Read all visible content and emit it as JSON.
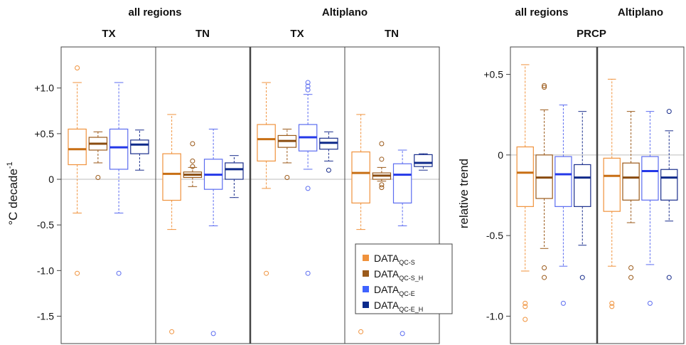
{
  "colors": {
    "orange": "#f0923c",
    "brown": "#9b5a1a",
    "blue": "#5b6cf0",
    "navy": "#1a2e8c",
    "frame": "#444444",
    "zero_line": "#bdbdbd"
  },
  "legend": {
    "items": [
      {
        "base": "DATA",
        "sub": "QC-S",
        "color": "#f0923c"
      },
      {
        "base": "DATA",
        "sub": "QC-S_H",
        "color": "#9b5a1a"
      },
      {
        "base": "DATA",
        "sub": "QC-E",
        "color": "#3f63ff"
      },
      {
        "base": "DATA",
        "sub": "QC-E_H",
        "color": "#0a2a8c"
      }
    ]
  },
  "chart_data": [
    {
      "type": "boxplot",
      "title_groups": [
        "all regions",
        "Altiplano"
      ],
      "panels": [
        "TX",
        "TN",
        "TX",
        "TN"
      ],
      "ylabel_base": "°C decade",
      "ylabel_sup": "-1",
      "yticks": [
        1.0,
        0.5,
        0,
        -0.5,
        -1.0,
        -1.5
      ],
      "ytick_labels": [
        "+1.0",
        "+0.5",
        "0",
        "-0.5",
        "-1.0",
        "-1.5"
      ],
      "ylim": [
        -1.8,
        1.45
      ],
      "series_order": [
        "DATA QC-S",
        "DATA QC-S_H",
        "DATA QC-E",
        "DATA QC-E_H"
      ],
      "boxes": [
        [
          {
            "wlo": -0.37,
            "q1": 0.16,
            "med": 0.33,
            "q3": 0.55,
            "whi": 1.06,
            "out": [
              1.22,
              -1.03
            ]
          },
          {
            "wlo": 0.18,
            "q1": 0.32,
            "med": 0.39,
            "q3": 0.46,
            "whi": 0.52,
            "out": [
              0.02
            ]
          },
          {
            "wlo": -0.37,
            "q1": 0.11,
            "med": 0.35,
            "q3": 0.55,
            "whi": 1.06,
            "out": [
              -1.03
            ]
          },
          {
            "wlo": 0.1,
            "q1": 0.28,
            "med": 0.38,
            "q3": 0.43,
            "whi": 0.54,
            "out": []
          }
        ],
        [
          {
            "wlo": -0.55,
            "q1": -0.23,
            "med": 0.06,
            "q3": 0.28,
            "whi": 0.71,
            "out": [
              -1.67
            ]
          },
          {
            "wlo": -0.08,
            "q1": 0.02,
            "med": 0.05,
            "q3": 0.08,
            "whi": 0.13,
            "out": [
              0.39,
              0.2,
              0.14
            ]
          },
          {
            "wlo": -0.51,
            "q1": -0.11,
            "med": 0.05,
            "q3": 0.22,
            "whi": 0.55,
            "out": [
              -1.69
            ]
          },
          {
            "wlo": -0.2,
            "q1": 0.0,
            "med": 0.11,
            "q3": 0.18,
            "whi": 0.26,
            "out": []
          }
        ],
        [
          {
            "wlo": -0.1,
            "q1": 0.2,
            "med": 0.44,
            "q3": 0.6,
            "whi": 1.06,
            "out": [
              -1.03
            ]
          },
          {
            "wlo": 0.18,
            "q1": 0.35,
            "med": 0.42,
            "q3": 0.48,
            "whi": 0.55,
            "out": [
              0.02
            ]
          },
          {
            "wlo": 0.11,
            "q1": 0.31,
            "med": 0.46,
            "q3": 0.6,
            "whi": 0.93,
            "out": [
              1.06,
              1.02,
              0.98,
              -0.1,
              -1.03
            ]
          },
          {
            "wlo": 0.2,
            "q1": 0.33,
            "med": 0.4,
            "q3": 0.45,
            "whi": 0.52,
            "out": [
              0.1
            ]
          }
        ],
        [
          {
            "wlo": -0.55,
            "q1": -0.26,
            "med": 0.07,
            "q3": 0.3,
            "whi": 0.71,
            "out": [
              -1.67
            ]
          },
          {
            "wlo": -0.02,
            "q1": 0.0,
            "med": 0.04,
            "q3": 0.07,
            "whi": 0.13,
            "out": [
              0.39,
              0.22,
              -0.06,
              -0.09
            ]
          },
          {
            "wlo": -0.51,
            "q1": -0.26,
            "med": 0.05,
            "q3": 0.17,
            "whi": 0.32,
            "out": [
              -1.69
            ]
          },
          {
            "wlo": 0.1,
            "q1": 0.14,
            "med": 0.18,
            "q3": 0.27,
            "whi": 0.28,
            "out": []
          }
        ]
      ]
    },
    {
      "type": "boxplot",
      "title_groups": [
        "all regions",
        "Altiplano"
      ],
      "panel_title": "PRCP",
      "ylabel": "relative trend",
      "yticks": [
        0.5,
        0,
        -0.5,
        -1.0
      ],
      "ytick_labels": [
        "+0.5",
        "0",
        "-0.5",
        "-1.0"
      ],
      "ylim": [
        -1.17,
        0.67
      ],
      "boxes": [
        [
          {
            "wlo": -0.72,
            "q1": -0.32,
            "med": -0.11,
            "q3": 0.05,
            "whi": 0.56,
            "out": [
              -0.92,
              -0.94,
              -1.02
            ]
          },
          {
            "wlo": -0.58,
            "q1": -0.27,
            "med": -0.14,
            "q3": 0.0,
            "whi": 0.28,
            "out": [
              0.43,
              0.42,
              -0.7,
              -0.76
            ]
          },
          {
            "wlo": -0.69,
            "q1": -0.32,
            "med": -0.12,
            "q3": -0.01,
            "whi": 0.31,
            "out": [
              -0.92
            ]
          },
          {
            "wlo": -0.56,
            "q1": -0.32,
            "med": -0.14,
            "q3": -0.06,
            "whi": 0.27,
            "out": [
              -0.76
            ]
          }
        ],
        [
          {
            "wlo": -0.69,
            "q1": -0.35,
            "med": -0.13,
            "q3": -0.02,
            "whi": 0.47,
            "out": [
              -0.92,
              -0.94
            ]
          },
          {
            "wlo": -0.42,
            "q1": -0.28,
            "med": -0.14,
            "q3": -0.05,
            "whi": 0.27,
            "out": [
              -0.7,
              -0.76
            ]
          },
          {
            "wlo": -0.68,
            "q1": -0.28,
            "med": -0.1,
            "q3": -0.01,
            "whi": 0.27,
            "out": [
              -0.92
            ]
          },
          {
            "wlo": -0.41,
            "q1": -0.28,
            "med": -0.14,
            "q3": -0.09,
            "whi": 0.15,
            "out": [
              0.27,
              -0.76
            ]
          }
        ]
      ]
    }
  ]
}
